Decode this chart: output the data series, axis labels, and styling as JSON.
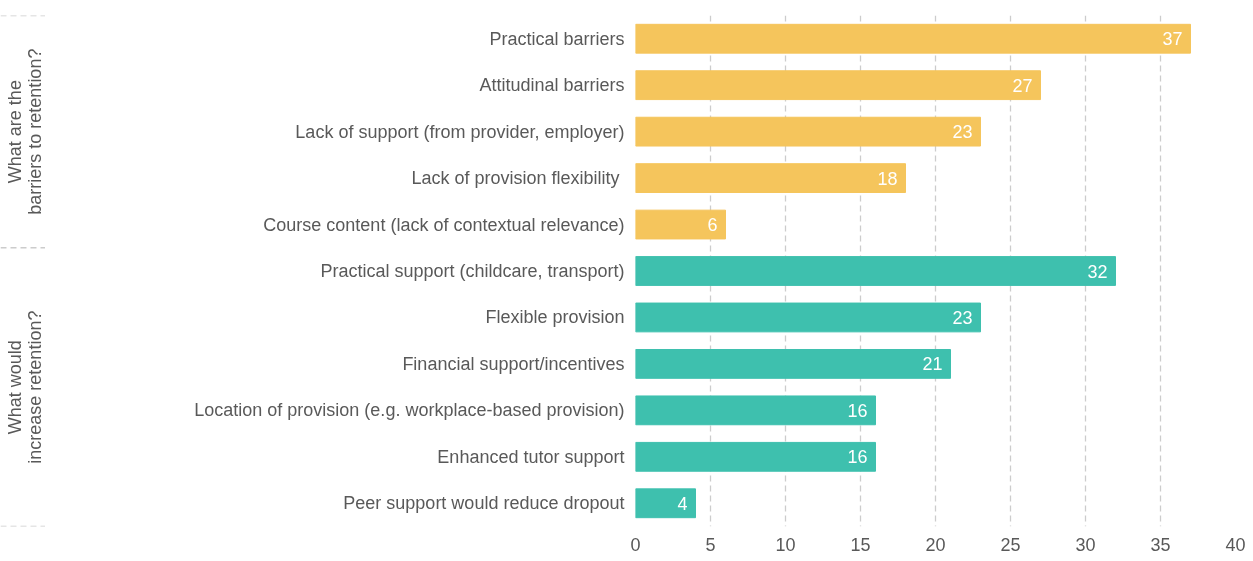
{
  "chart_data": {
    "type": "bar",
    "orientation": "horizontal",
    "categories": [
      "Practical barriers",
      "Attitudinal barriers",
      "Lack of support (from provider, employer)",
      "Lack of provision flexibility ",
      "Course content (lack of contextual relevance)",
      "Practical support (childcare, transport)",
      "Flexible provision",
      "Financial support/incentives",
      "Location of provision (e.g. workplace-based provision)",
      "Enhanced tutor support",
      "Peer support would reduce dropout"
    ],
    "values": [
      37,
      27,
      23,
      18,
      6,
      32,
      23,
      21,
      16,
      16,
      4
    ],
    "colors": [
      "#f5c55c",
      "#f5c55c",
      "#f5c55c",
      "#f5c55c",
      "#f5c55c",
      "#3ec0ae",
      "#3ec0ae",
      "#3ec0ae",
      "#3ec0ae",
      "#3ec0ae",
      "#3ec0ae"
    ],
    "xlim": [
      0,
      40
    ],
    "xticks": [
      0,
      5,
      10,
      15,
      20,
      25,
      30,
      35,
      40
    ],
    "grid": "x",
    "data_labels": true,
    "annotations": [
      "What are the barriers to retention?",
      "What would increase retention?"
    ]
  }
}
